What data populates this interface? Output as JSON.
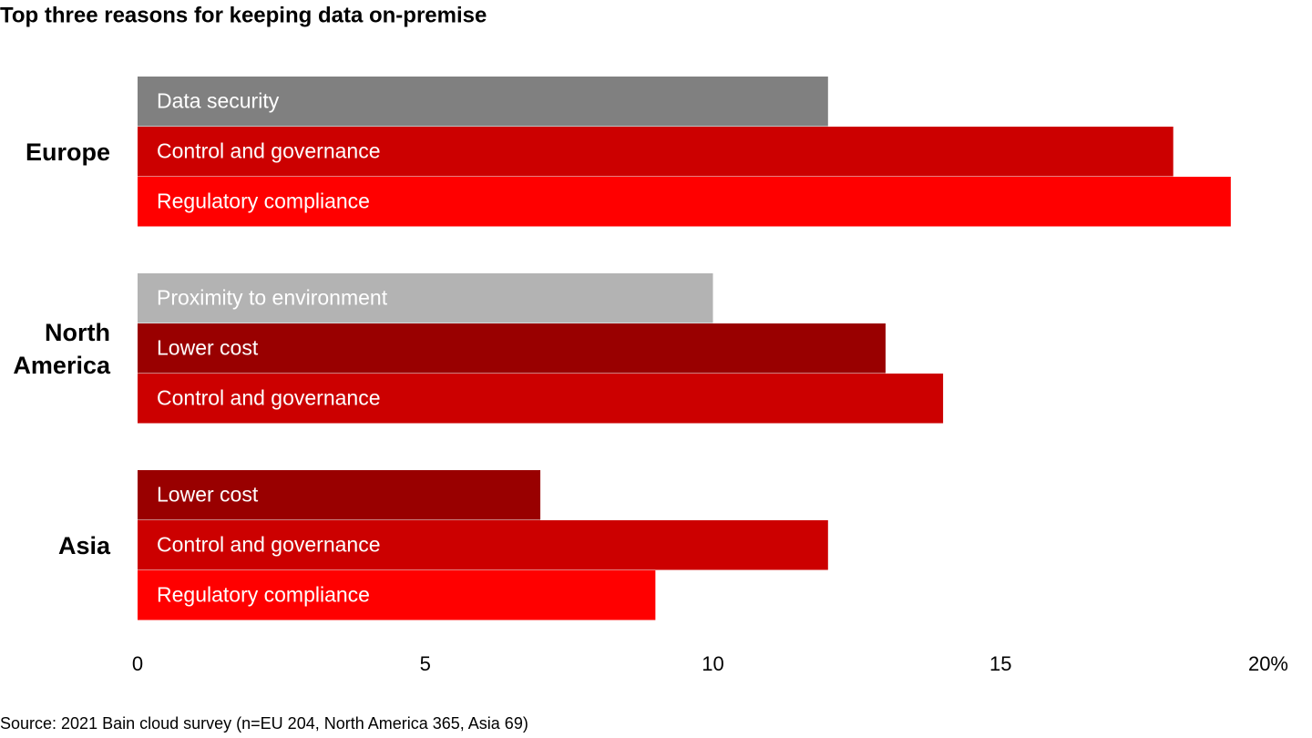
{
  "chart_data": {
    "type": "grouped-hbar",
    "title": "Top three reasons for keeping data on-premise",
    "source": "Source: 2021 Bain cloud survey (n=EU 204, North America 365, Asia 69)",
    "xlim": [
      0,
      20
    ],
    "xticks": [
      0,
      5,
      10,
      15,
      {
        "value": 20,
        "label": "20%"
      }
    ],
    "groups": [
      {
        "name": "Europe",
        "bars": [
          {
            "label": "Data security",
            "value": 12,
            "color": "#808080"
          },
          {
            "label": "Control and governance",
            "value": 18,
            "color": "#cc0000"
          },
          {
            "label": "Regulatory compliance",
            "value": 19,
            "color": "#ff0000"
          }
        ]
      },
      {
        "name": "North America",
        "bars": [
          {
            "label": "Proximity to environment",
            "value": 10,
            "color": "#b3b3b3"
          },
          {
            "label": "Lower cost",
            "value": 13,
            "color": "#990000"
          },
          {
            "label": "Control and governance",
            "value": 14,
            "color": "#cc0000"
          }
        ]
      },
      {
        "name": "Asia",
        "bars": [
          {
            "label": "Lower cost",
            "value": 7,
            "color": "#990000"
          },
          {
            "label": "Control and governance",
            "value": 12,
            "color": "#cc0000"
          },
          {
            "label": "Regulatory compliance",
            "value": 9,
            "color": "#ff0000"
          }
        ]
      }
    ]
  }
}
